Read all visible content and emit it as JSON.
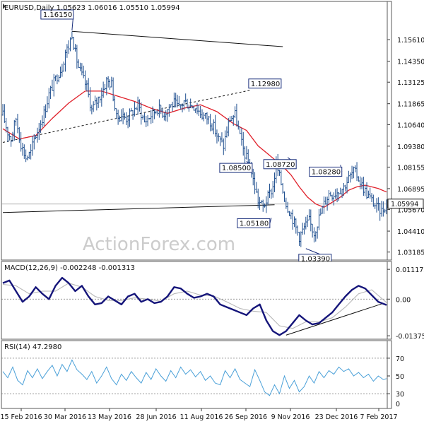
{
  "watermark": "ActionForex.com",
  "colors": {
    "price": "#1f4f8f",
    "ma": "#e0202a",
    "macd": "#15157a",
    "signal": "#b8b8b8",
    "rsi": "#4aa0d8",
    "trendline": "#111111",
    "label_border": "#1a2f7c",
    "grid": "#b8c4d8",
    "level": "#555555"
  },
  "chart_data": [
    {
      "type": "candlestick",
      "title": "EURUSD,Daily  1.05623 1.06016 1.05510 1.05994",
      "ylim": [
        1.028,
        1.176
      ],
      "y_ticks": [
        "1.15610",
        "1.14350",
        "1.13125",
        "1.11865",
        "1.10640",
        "1.09380",
        "1.08155",
        "1.06895",
        "1.05670",
        "1.04410",
        "1.03185"
      ],
      "current_price": "1.05994",
      "x_ticks": [
        "15 Feb 2016",
        "30 Mar 2016",
        "13 May 2016",
        "28 Jun 2016",
        "11 Aug 2016",
        "26 Sep 2016",
        "9 Nov 2016",
        "23 Dec 2016",
        "7 Feb 2017"
      ],
      "price_path": [
        [
          0,
          1.112
        ],
        [
          3,
          1.102
        ],
        [
          5,
          1.098
        ],
        [
          8,
          1.11
        ],
        [
          11,
          1.095
        ],
        [
          14,
          1.087
        ],
        [
          17,
          1.09
        ],
        [
          19,
          1.098
        ],
        [
          22,
          1.105
        ],
        [
          25,
          1.113
        ],
        [
          28,
          1.124
        ],
        [
          31,
          1.131
        ],
        [
          34,
          1.137
        ],
        [
          36,
          1.14
        ],
        [
          38,
          1.149
        ],
        [
          40,
          1.152
        ],
        [
          42,
          1.16
        ],
        [
          44,
          1.148
        ],
        [
          46,
          1.14
        ],
        [
          48,
          1.135
        ],
        [
          51,
          1.128
        ],
        [
          54,
          1.115
        ],
        [
          57,
          1.12
        ],
        [
          60,
          1.125
        ],
        [
          63,
          1.132
        ],
        [
          66,
          1.13
        ],
        [
          69,
          1.11
        ],
        [
          72,
          1.112
        ],
        [
          75,
          1.11
        ],
        [
          78,
          1.113
        ],
        [
          82,
          1.118
        ],
        [
          86,
          1.108
        ],
        [
          90,
          1.112
        ],
        [
          94,
          1.116
        ],
        [
          98,
          1.113
        ],
        [
          101,
          1.117
        ],
        [
          104,
          1.119
        ],
        [
          107,
          1.116
        ],
        [
          110,
          1.12
        ],
        [
          113,
          1.118
        ],
        [
          117,
          1.117
        ],
        [
          121,
          1.112
        ],
        [
          125,
          1.11
        ],
        [
          128,
          1.105
        ],
        [
          131,
          1.098
        ],
        [
          134,
          1.094
        ],
        [
          136,
          1.103
        ],
        [
          138,
          1.11
        ],
        [
          141,
          1.112
        ],
        [
          143,
          1.104
        ],
        [
          145,
          1.095
        ],
        [
          147,
          1.089
        ],
        [
          150,
          1.082
        ],
        [
          152,
          1.074
        ],
        [
          155,
          1.062
        ],
        [
          158,
          1.058
        ],
        [
          161,
          1.064
        ],
        [
          164,
          1.07
        ],
        [
          166,
          1.083
        ],
        [
          169,
          1.072
        ],
        [
          172,
          1.06
        ],
        [
          175,
          1.054
        ],
        [
          178,
          1.046
        ],
        [
          180,
          1.041
        ],
        [
          183,
          1.046
        ],
        [
          186,
          1.05
        ],
        [
          189,
          1.043
        ],
        [
          192,
          1.052
        ],
        [
          195,
          1.06
        ],
        [
          198,
          1.066
        ],
        [
          201,
          1.066
        ],
        [
          204,
          1.068
        ],
        [
          207,
          1.07
        ],
        [
          210,
          1.075
        ],
        [
          213,
          1.079
        ],
        [
          215,
          1.077
        ],
        [
          218,
          1.071
        ],
        [
          221,
          1.066
        ],
        [
          224,
          1.062
        ],
        [
          227,
          1.058
        ],
        [
          230,
          1.056
        ],
        [
          233,
          1.06
        ]
      ],
      "moving_average": [
        [
          0,
          1.104
        ],
        [
          10,
          1.098
        ],
        [
          20,
          1.1
        ],
        [
          30,
          1.11
        ],
        [
          40,
          1.119
        ],
        [
          50,
          1.126
        ],
        [
          60,
          1.126
        ],
        [
          70,
          1.123
        ],
        [
          80,
          1.12
        ],
        [
          90,
          1.116
        ],
        [
          100,
          1.113
        ],
        [
          110,
          1.116
        ],
        [
          120,
          1.118
        ],
        [
          130,
          1.114
        ],
        [
          140,
          1.107
        ],
        [
          148,
          1.103
        ],
        [
          155,
          1.094
        ],
        [
          160,
          1.09
        ],
        [
          165,
          1.086
        ],
        [
          170,
          1.082
        ],
        [
          175,
          1.077
        ],
        [
          180,
          1.07
        ],
        [
          185,
          1.064
        ],
        [
          190,
          1.06
        ],
        [
          195,
          1.058
        ],
        [
          200,
          1.061
        ],
        [
          205,
          1.064
        ],
        [
          210,
          1.068
        ],
        [
          215,
          1.07
        ],
        [
          220,
          1.071
        ],
        [
          228,
          1.069
        ],
        [
          233,
          1.067
        ]
      ],
      "trendlines": [
        {
          "from": [
            42,
            1.161
          ],
          "to": [
            170,
            1.152
          ]
        },
        {
          "from": [
            0,
            1.055
          ],
          "to": [
            165,
            1.0595
          ]
        },
        {
          "from": [
            0,
            1.096
          ],
          "to": [
            150,
            1.1265
          ],
          "dashed": true
        }
      ],
      "annotations": [
        {
          "label": "1.16150",
          "x": 42,
          "y": 1.1615
        },
        {
          "label": "1.12980",
          "x": 154,
          "y": 1.1298
        },
        {
          "label": "1.08500",
          "x": 148,
          "y": 1.085
        },
        {
          "label": "1.08720",
          "x": 173,
          "y": 1.0872
        },
        {
          "label": "1.08280",
          "x": 205,
          "y": 1.0828
        },
        {
          "label": "1.05180",
          "x": 163,
          "y": 1.0518
        },
        {
          "label": "1.03390",
          "x": 184,
          "y": 1.0339
        }
      ]
    },
    {
      "type": "line",
      "title": "MACD(12,26,9) -0.002248 -0.001313",
      "ylim": [
        -0.0145,
        0.012
      ],
      "y_ticks": [
        "0.011172",
        "0.00",
        "-0.01375"
      ],
      "zero_level": 0.0,
      "macd": [
        [
          0,
          0.006
        ],
        [
          4,
          0.007
        ],
        [
          8,
          0.003
        ],
        [
          12,
          -0.001
        ],
        [
          16,
          0.001
        ],
        [
          20,
          0.0045
        ],
        [
          24,
          0.002
        ],
        [
          28,
          0.0
        ],
        [
          32,
          0.005
        ],
        [
          36,
          0.008
        ],
        [
          40,
          0.006
        ],
        [
          44,
          0.003
        ],
        [
          48,
          0.005
        ],
        [
          52,
          0.001
        ],
        [
          56,
          -0.002
        ],
        [
          60,
          -0.0015
        ],
        [
          64,
          0.001
        ],
        [
          68,
          -0.0005
        ],
        [
          72,
          -0.002
        ],
        [
          76,
          0.001
        ],
        [
          80,
          0.002
        ],
        [
          84,
          -0.001
        ],
        [
          88,
          0.0
        ],
        [
          92,
          -0.0015
        ],
        [
          96,
          -0.001
        ],
        [
          100,
          0.001
        ],
        [
          104,
          0.0045
        ],
        [
          108,
          0.004
        ],
        [
          112,
          0.002
        ],
        [
          116,
          0.0005
        ],
        [
          120,
          0.001
        ],
        [
          124,
          0.002
        ],
        [
          128,
          0.001
        ],
        [
          132,
          -0.002
        ],
        [
          136,
          -0.003
        ],
        [
          140,
          -0.004
        ],
        [
          144,
          -0.005
        ],
        [
          148,
          -0.006
        ],
        [
          152,
          -0.0035
        ],
        [
          156,
          -0.002
        ],
        [
          160,
          -0.008
        ],
        [
          164,
          -0.012
        ],
        [
          168,
          -0.0135
        ],
        [
          172,
          -0.012
        ],
        [
          176,
          -0.009
        ],
        [
          180,
          -0.006
        ],
        [
          184,
          -0.008
        ],
        [
          188,
          -0.0095
        ],
        [
          192,
          -0.009
        ],
        [
          196,
          -0.007
        ],
        [
          200,
          -0.005
        ],
        [
          204,
          -0.002
        ],
        [
          208,
          0.001
        ],
        [
          212,
          0.0035
        ],
        [
          216,
          0.005
        ],
        [
          220,
          0.004
        ],
        [
          224,
          0.0015
        ],
        [
          228,
          -0.001
        ],
        [
          233,
          -0.0022
        ]
      ],
      "signal": [
        [
          0,
          0.0055
        ],
        [
          8,
          0.005
        ],
        [
          16,
          0.002
        ],
        [
          24,
          0.003
        ],
        [
          32,
          0.003
        ],
        [
          40,
          0.006
        ],
        [
          48,
          0.0045
        ],
        [
          56,
          0.001
        ],
        [
          64,
          -0.0005
        ],
        [
          72,
          -0.0005
        ],
        [
          80,
          0.0005
        ],
        [
          88,
          0.0
        ],
        [
          96,
          -0.0008
        ],
        [
          104,
          0.002
        ],
        [
          112,
          0.003
        ],
        [
          120,
          0.0015
        ],
        [
          128,
          0.0012
        ],
        [
          136,
          -0.001
        ],
        [
          144,
          -0.0035
        ],
        [
          152,
          -0.0045
        ],
        [
          160,
          -0.005
        ],
        [
          168,
          -0.01
        ],
        [
          176,
          -0.011
        ],
        [
          184,
          -0.0085
        ],
        [
          192,
          -0.0085
        ],
        [
          200,
          -0.007
        ],
        [
          208,
          -0.003
        ],
        [
          216,
          0.002
        ],
        [
          224,
          0.0035
        ],
        [
          233,
          -0.0013
        ]
      ],
      "trendline": {
        "from": [
          172,
          -0.0135
        ],
        "to": [
          230,
          -0.0018
        ]
      }
    },
    {
      "type": "line",
      "title": "RSI(14) 47.2980",
      "ylim": [
        15,
        85
      ],
      "y_ticks": [
        "70",
        "50",
        "30"
      ],
      "y_tick_extra": "0",
      "levels": [
        70,
        30
      ],
      "rsi": [
        [
          0,
          55
        ],
        [
          3,
          48
        ],
        [
          6,
          60
        ],
        [
          9,
          45
        ],
        [
          12,
          40
        ],
        [
          15,
          56
        ],
        [
          18,
          48
        ],
        [
          21,
          58
        ],
        [
          24,
          47
        ],
        [
          27,
          55
        ],
        [
          30,
          62
        ],
        [
          33,
          50
        ],
        [
          36,
          63
        ],
        [
          39,
          55
        ],
        [
          42,
          68
        ],
        [
          45,
          57
        ],
        [
          48,
          52
        ],
        [
          51,
          46
        ],
        [
          54,
          55
        ],
        [
          57,
          42
        ],
        [
          60,
          50
        ],
        [
          63,
          60
        ],
        [
          66,
          47
        ],
        [
          69,
          40
        ],
        [
          72,
          52
        ],
        [
          75,
          45
        ],
        [
          78,
          55
        ],
        [
          81,
          48
        ],
        [
          84,
          42
        ],
        [
          87,
          54
        ],
        [
          90,
          46
        ],
        [
          93,
          58
        ],
        [
          96,
          50
        ],
        [
          99,
          44
        ],
        [
          102,
          56
        ],
        [
          105,
          48
        ],
        [
          108,
          60
        ],
        [
          111,
          52
        ],
        [
          114,
          57
        ],
        [
          117,
          49
        ],
        [
          120,
          55
        ],
        [
          123,
          45
        ],
        [
          126,
          50
        ],
        [
          129,
          42
        ],
        [
          132,
          40
        ],
        [
          135,
          56
        ],
        [
          138,
          48
        ],
        [
          141,
          58
        ],
        [
          144,
          46
        ],
        [
          147,
          42
        ],
        [
          150,
          38
        ],
        [
          153,
          57
        ],
        [
          156,
          45
        ],
        [
          159,
          32
        ],
        [
          162,
          28
        ],
        [
          165,
          40
        ],
        [
          168,
          30
        ],
        [
          171,
          50
        ],
        [
          174,
          36
        ],
        [
          177,
          45
        ],
        [
          180,
          32
        ],
        [
          183,
          38
        ],
        [
          186,
          50
        ],
        [
          189,
          42
        ],
        [
          192,
          55
        ],
        [
          195,
          48
        ],
        [
          198,
          56
        ],
        [
          201,
          52
        ],
        [
          204,
          60
        ],
        [
          207,
          55
        ],
        [
          210,
          58
        ],
        [
          213,
          50
        ],
        [
          216,
          54
        ],
        [
          219,
          48
        ],
        [
          222,
          52
        ],
        [
          225,
          44
        ],
        [
          228,
          50
        ],
        [
          231,
          46
        ],
        [
          233,
          47
        ]
      ]
    }
  ]
}
